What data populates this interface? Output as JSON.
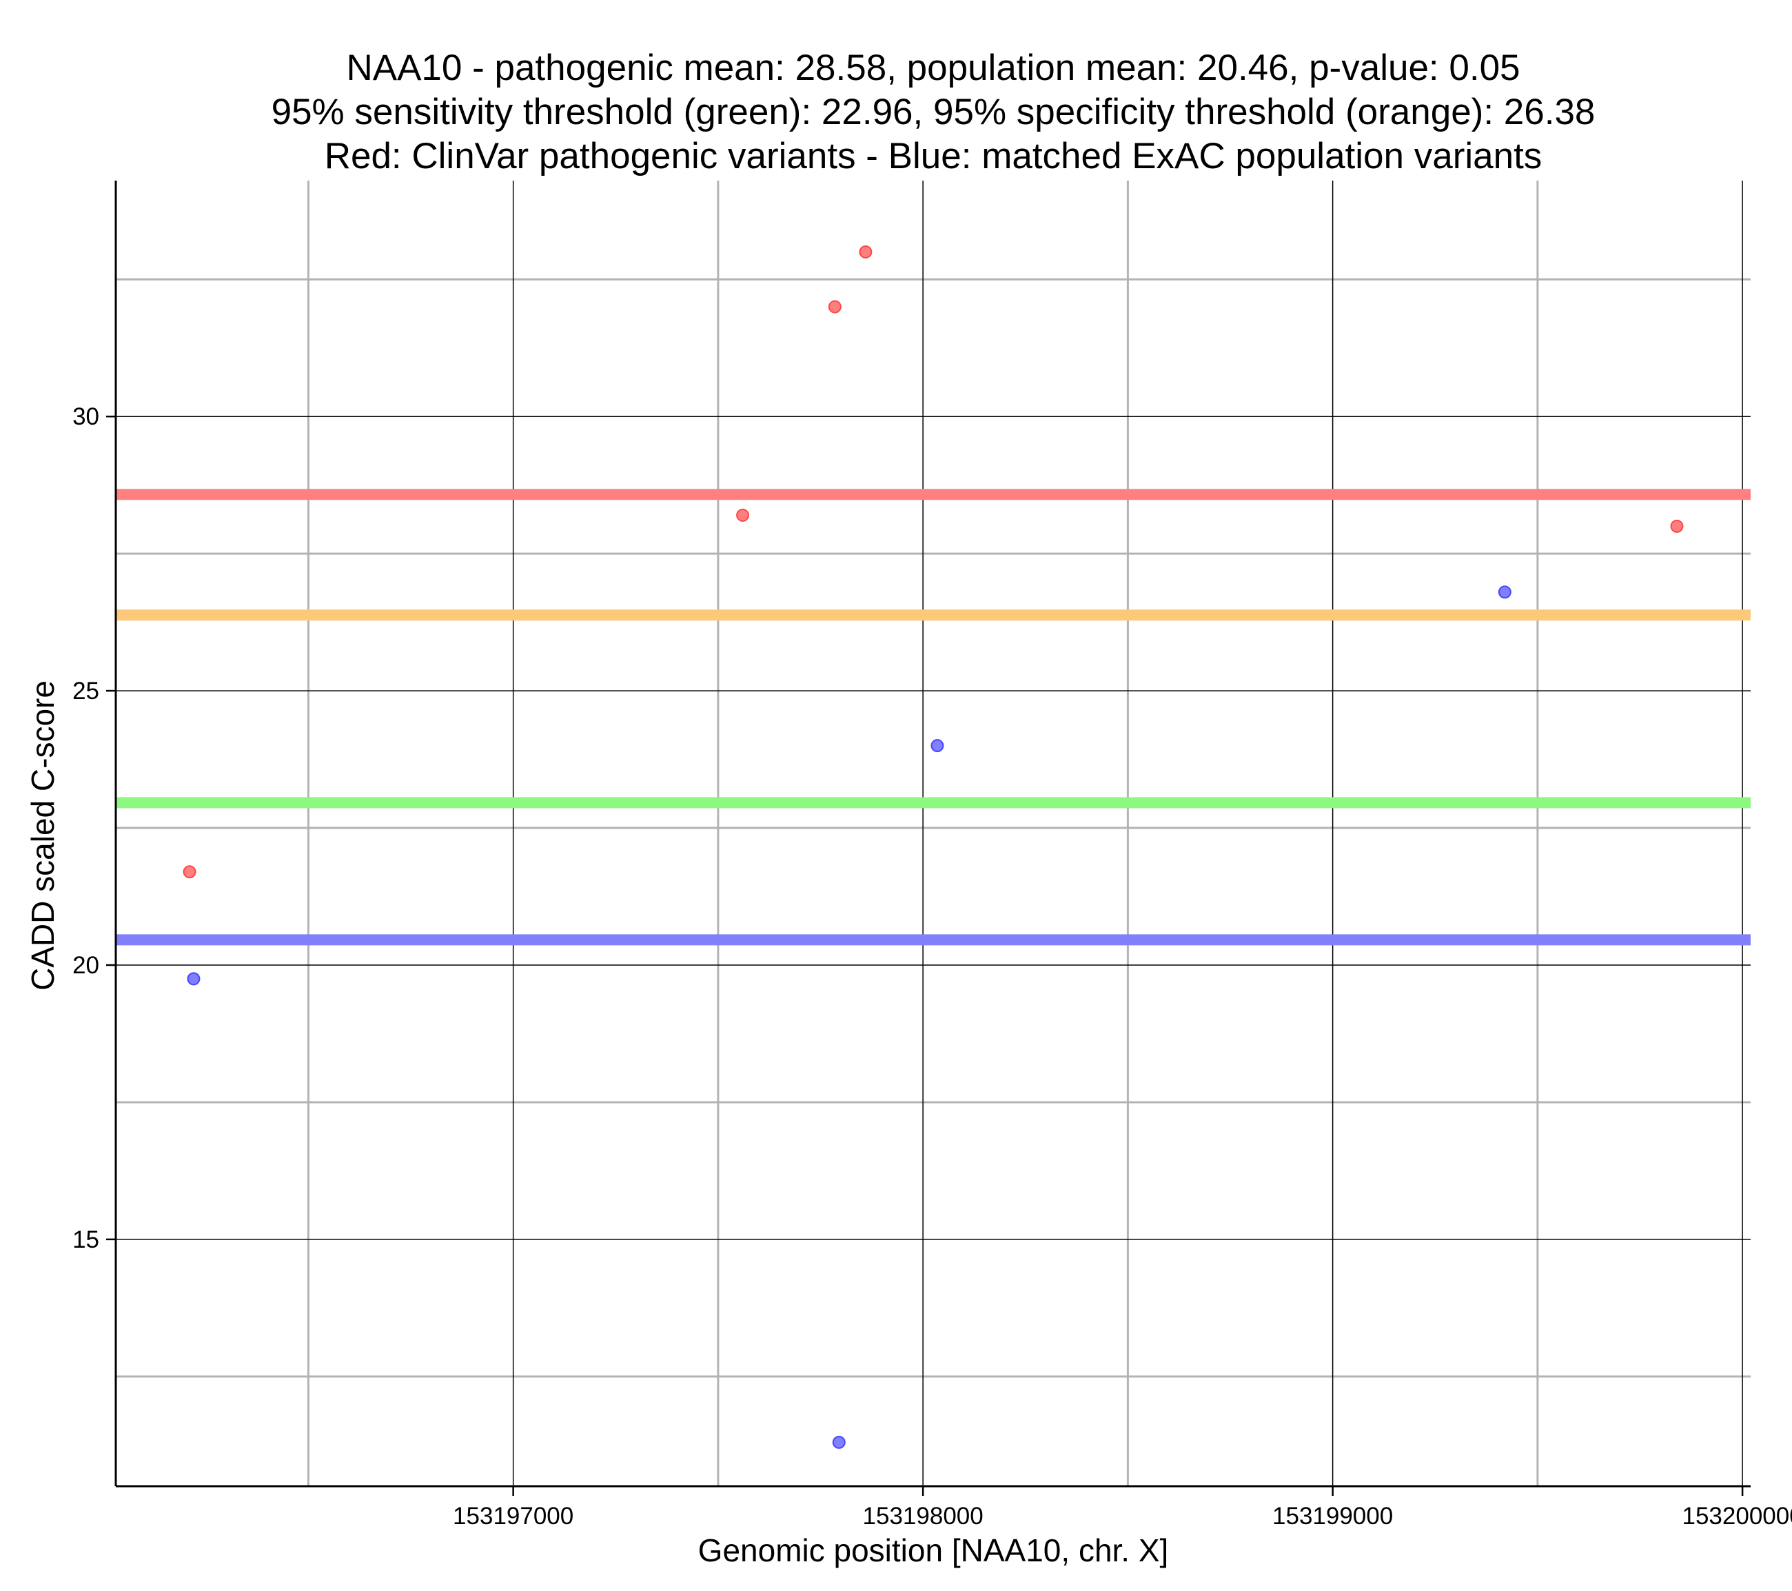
{
  "chart_data": {
    "type": "scatter",
    "title": [
      "NAA10 - pathogenic mean: 28.58, population mean: 20.46, p-value: 0.05",
      "95% sensitivity threshold (green): 22.96, 95% specificity threshold (orange): 26.38",
      "Red: ClinVar pathogenic variants - Blue: matched ExAC population variants"
    ],
    "xlabel": "Genomic position [NAA10, chr. X]",
    "ylabel": "CADD scaled C-score",
    "xlim": [
      153196030,
      153200020
    ],
    "ylim": [
      10.5,
      34.3
    ],
    "x_major_ticks": [
      153197000,
      153198000,
      153199000,
      153200000
    ],
    "x_minor_ticks": [
      153196500,
      153197500,
      153198500,
      153199500
    ],
    "x_tick_labels": [
      "153197000",
      "153198000",
      "153199000",
      "153200000"
    ],
    "y_major_ticks": [
      15,
      20,
      25,
      30
    ],
    "y_minor_ticks": [
      12.5,
      17.5,
      22.5,
      27.5,
      32.5
    ],
    "y_tick_labels": [
      "15",
      "20",
      "25",
      "30"
    ],
    "grid": true,
    "series": [
      {
        "name": "ClinVar pathogenic variants",
        "color": "#ff3b3b",
        "points": [
          {
            "x": 153196210,
            "y": 21.7
          },
          {
            "x": 153197560,
            "y": 28.2
          },
          {
            "x": 153197785,
            "y": 32.0
          },
          {
            "x": 153197860,
            "y": 33.0
          },
          {
            "x": 153199840,
            "y": 28.0
          }
        ]
      },
      {
        "name": "matched ExAC population variants",
        "color": "#3b3bff",
        "points": [
          {
            "x": 153196220,
            "y": 19.75
          },
          {
            "x": 153197795,
            "y": 11.3
          },
          {
            "x": 153198035,
            "y": 24.0
          },
          {
            "x": 153199420,
            "y": 26.8
          }
        ]
      }
    ],
    "reference_lines": [
      {
        "name": "pathogenic mean",
        "y": 28.58,
        "color": "#ff8080"
      },
      {
        "name": "95% specificity threshold",
        "y": 26.38,
        "color": "#fbc979"
      },
      {
        "name": "95% sensitivity threshold",
        "y": 22.96,
        "color": "#8df87f"
      },
      {
        "name": "population mean",
        "y": 20.46,
        "color": "#8080fa"
      }
    ]
  }
}
